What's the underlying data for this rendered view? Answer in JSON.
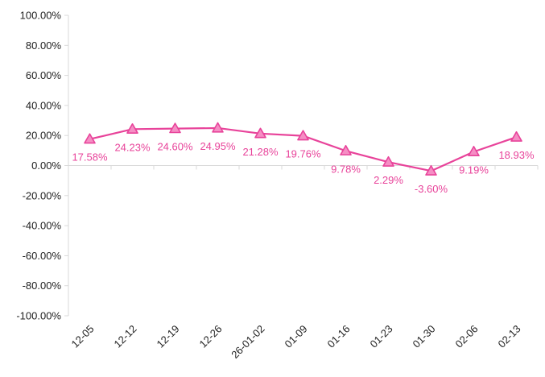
{
  "chart_data": {
    "type": "line",
    "categories": [
      "12-05",
      "12-12",
      "12-19",
      "12-26",
      "26-01-02",
      "01-09",
      "01-16",
      "01-23",
      "01-30",
      "02-06",
      "02-13"
    ],
    "series": [
      {
        "values": [
          17.58,
          24.23,
          24.6,
          24.95,
          21.28,
          19.76,
          9.78,
          2.29,
          -3.6,
          9.19,
          18.93
        ],
        "labels": [
          "17.58%",
          "24.23%",
          "24.60%",
          "24.95%",
          "21.28%",
          "19.76%",
          "9.78%",
          "2.29%",
          "-3.60%",
          "9.19%",
          "18.93%"
        ],
        "color": "#e8439a",
        "marker": "triangle",
        "marker_fill": "#f58ec4"
      }
    ],
    "ylim": [
      -100,
      100
    ],
    "yticks": [
      100,
      80,
      60,
      40,
      20,
      0,
      -20,
      -40,
      -60,
      -80,
      -100
    ],
    "ytick_labels": [
      "100.00%",
      "80.00%",
      "60.00%",
      "40.00%",
      "20.00%",
      "0.00%",
      "-20.00%",
      "-40.00%",
      "-60.00%",
      "-80.00%",
      "-100.00%"
    ],
    "grid": false,
    "legend": "none",
    "colors": {
      "line": "#e8439a",
      "axis": "#d9d9d9",
      "text": "#222222"
    }
  }
}
